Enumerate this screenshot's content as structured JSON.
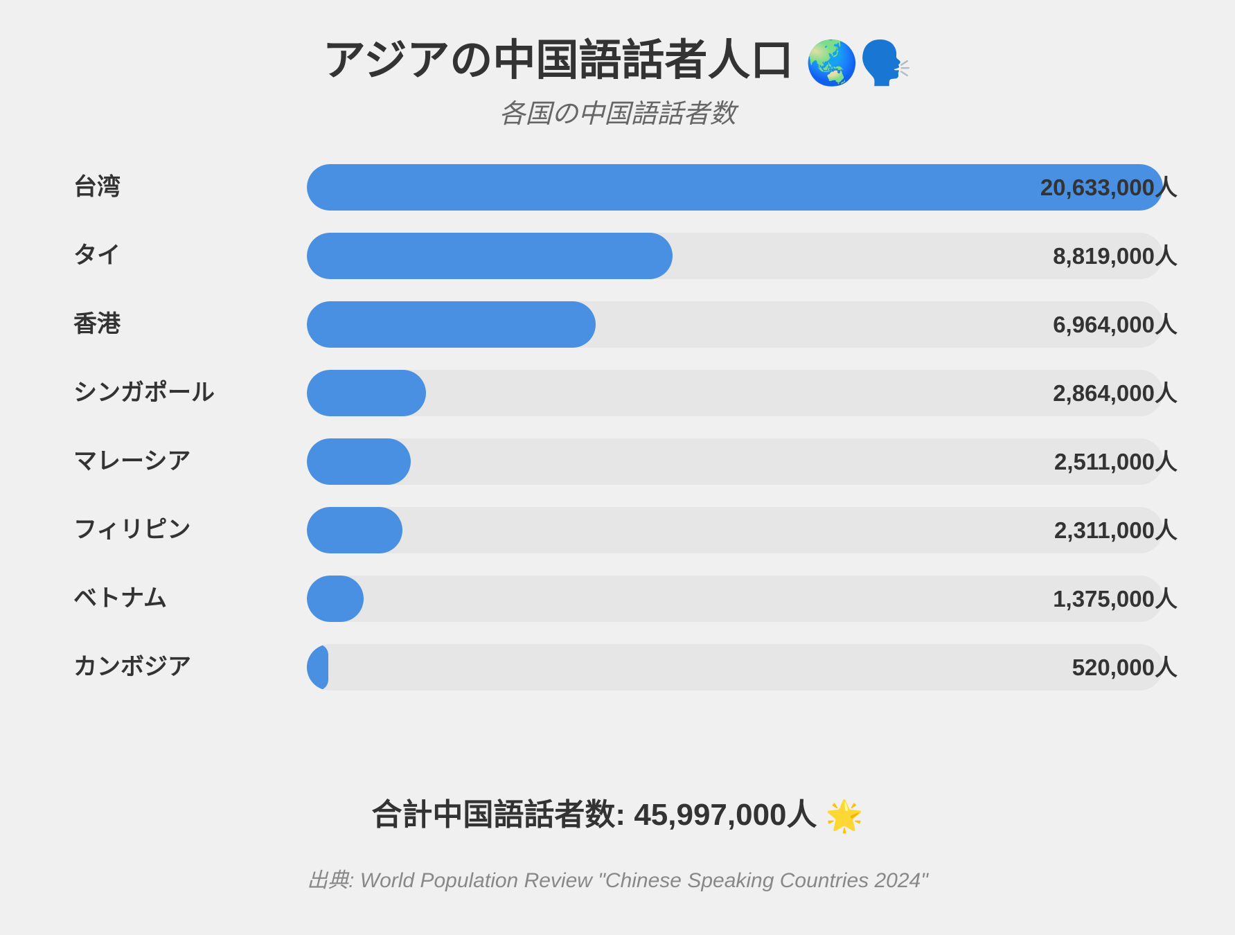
{
  "colors": {
    "background": "#f0f0f0",
    "bar": "#4a90e2",
    "track": "#e6e6e6",
    "text": "#333333",
    "subtitle": "#666666",
    "source": "#888888"
  },
  "header": {
    "title": "アジアの中国語話者人口",
    "title_emojis": "🌏🗣️",
    "subtitle": "各国の中国語話者数"
  },
  "chart_data": {
    "type": "bar",
    "orientation": "horizontal",
    "title": "アジアの中国語話者人口",
    "subtitle": "各国の中国語話者数",
    "categories": [
      "台湾",
      "タイ",
      "香港",
      "シンガポール",
      "マレーシア",
      "フィリピン",
      "ベトナム",
      "カンボジア"
    ],
    "flags": [
      "taiwan-flag",
      "thailand-flag",
      "hong-kong-flag",
      "singapore-flag",
      "malaysia-flag",
      "philippines-flag",
      "vietnam-flag",
      "cambodia-flag"
    ],
    "values": [
      20633000,
      8819000,
      6964000,
      2864000,
      2511000,
      2311000,
      1375000,
      520000
    ],
    "value_labels": [
      "20,633,000人",
      "8,819,000人",
      "6,964,000人",
      "2,864,000人",
      "2,511,000人",
      "2,311,000人",
      "1,375,000人",
      "520,000人"
    ],
    "xlim": [
      0,
      20633000
    ],
    "grid": false,
    "legend": "none"
  },
  "footer": {
    "total_label": "合計中国語話者数: 45,997,000人",
    "total_emoji": "🌟",
    "source": "出典: World Population Review \"Chinese Speaking Countries 2024\""
  }
}
